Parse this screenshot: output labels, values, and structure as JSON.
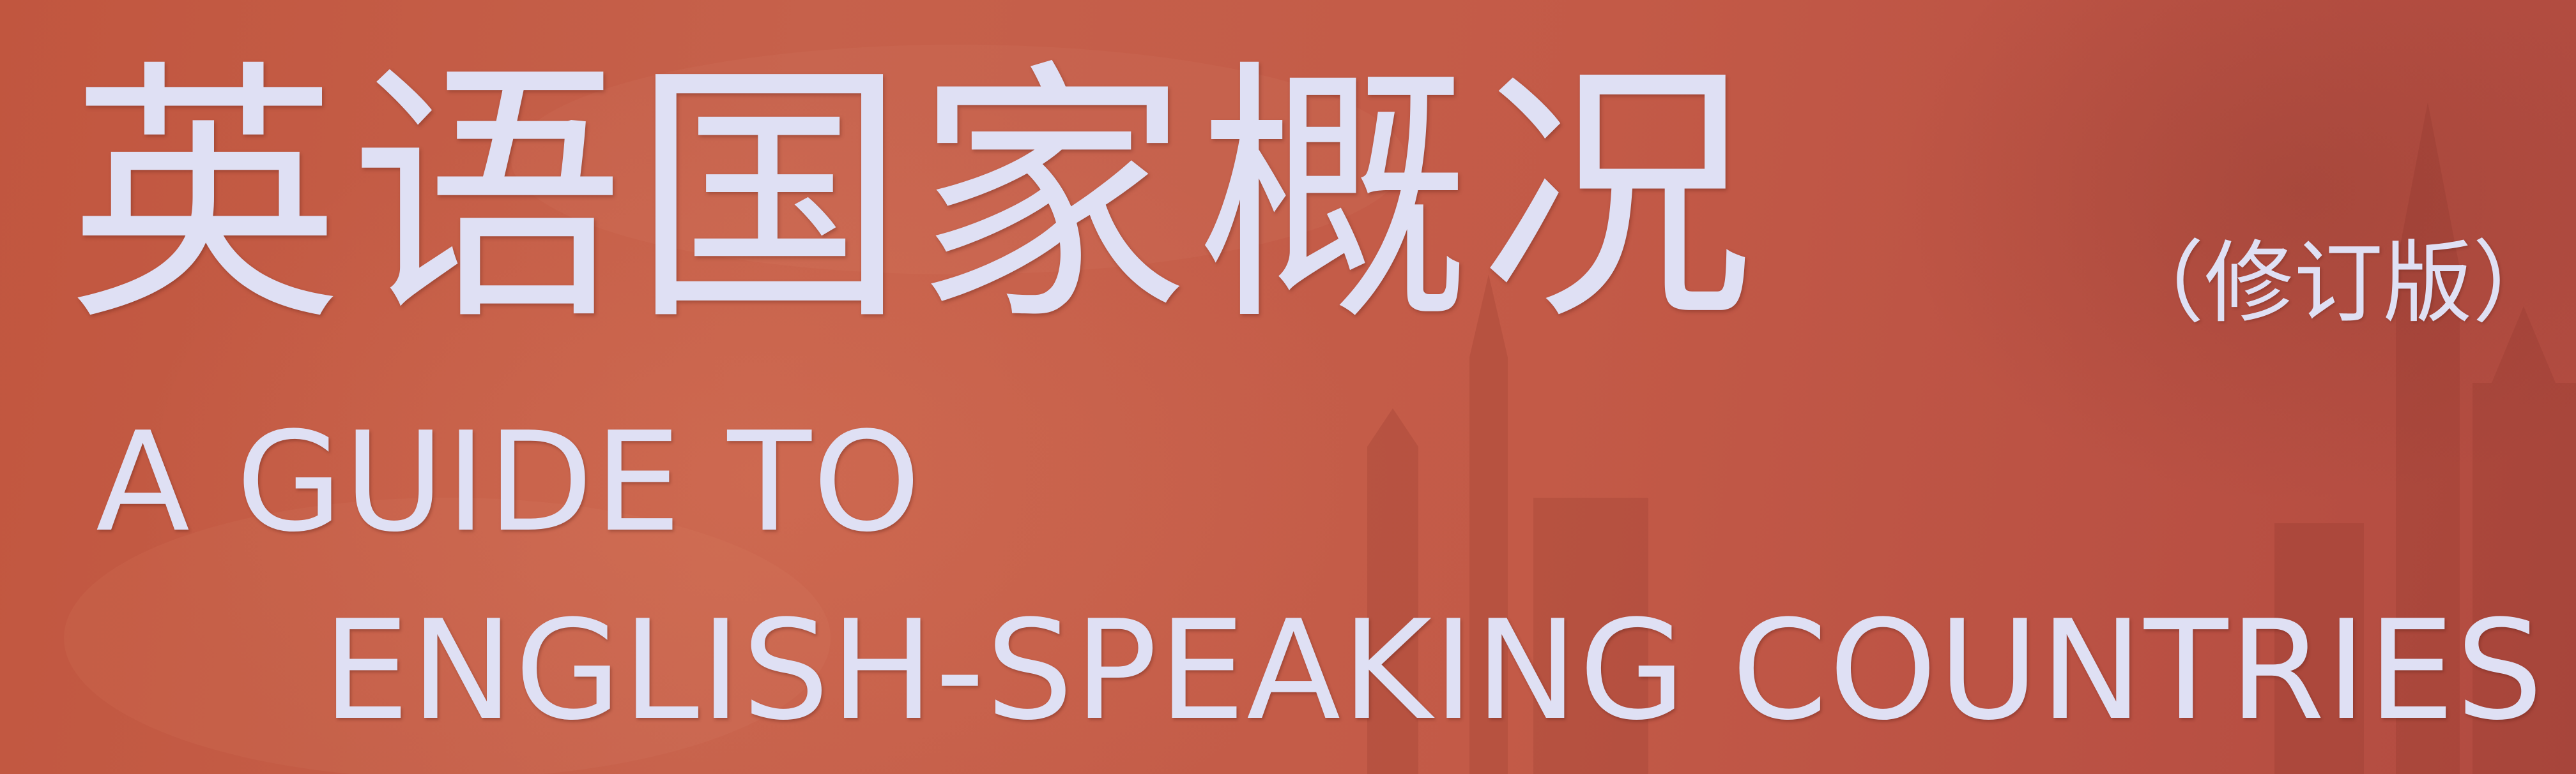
{
  "cover": {
    "title_cn": "英语国家概况",
    "edition": "（修订版）",
    "title_en_line1": "A GUIDE TO",
    "title_en_line2": "ENGLISH-SPEAKING COUNTRIES"
  },
  "colors": {
    "background": "#c35a47",
    "text": "#dfe0f4"
  }
}
